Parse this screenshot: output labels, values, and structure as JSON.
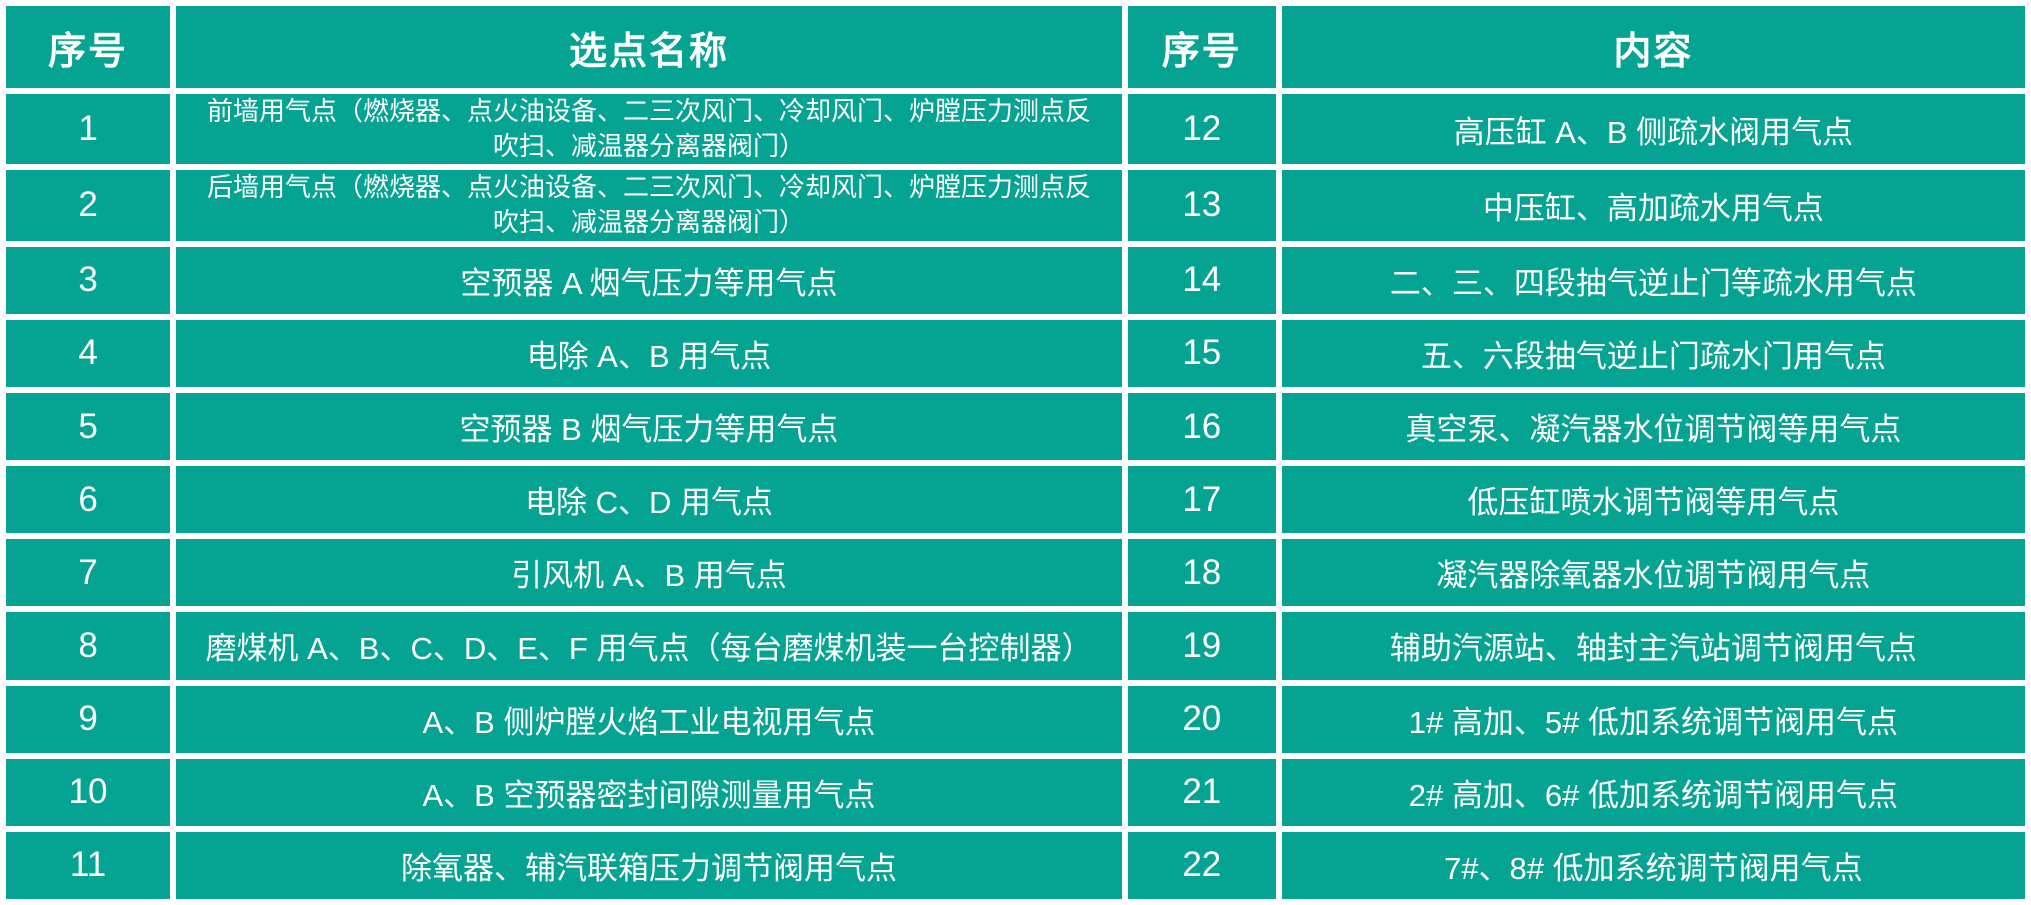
{
  "colors": {
    "background_teal": "#05a492",
    "grid_border": "#ffffff",
    "text": "#ffffff"
  },
  "left_table": {
    "headers": {
      "num": "序号",
      "name": "选点名称"
    },
    "rows": [
      {
        "num": "1",
        "text": "前墙用气点（燃烧器、点火油设备、二三次风门、冷却风门、炉膛压力测点反吹扫、减温器分离器阀门）",
        "small": true
      },
      {
        "num": "2",
        "text": "后墙用气点（燃烧器、点火油设备、二三次风门、冷却风门、炉膛压力测点反吹扫、减温器分离器阀门）",
        "small": true
      },
      {
        "num": "3",
        "text": "空预器 A 烟气压力等用气点",
        "small": false
      },
      {
        "num": "4",
        "text": "电除 A、B 用气点",
        "small": false
      },
      {
        "num": "5",
        "text": "空预器 B 烟气压力等用气点",
        "small": false
      },
      {
        "num": "6",
        "text": "电除 C、D 用气点",
        "small": false
      },
      {
        "num": "7",
        "text": "引风机 A、B 用气点",
        "small": false
      },
      {
        "num": "8",
        "text": "磨煤机 A、B、C、D、E、F 用气点（每台磨煤机装一台控制器）",
        "small": false
      },
      {
        "num": "9",
        "text": "A、B 侧炉膛火焰工业电视用气点",
        "small": false
      },
      {
        "num": "10",
        "text": "A、B 空预器密封间隙测量用气点",
        "small": false
      },
      {
        "num": "11",
        "text": "除氧器、辅汽联箱压力调节阀用气点",
        "small": false
      }
    ]
  },
  "right_table": {
    "headers": {
      "num": "序号",
      "content": "内容"
    },
    "rows": [
      {
        "num": "12",
        "text": "高压缸 A、B 侧疏水阀用气点"
      },
      {
        "num": "13",
        "text": "中压缸、高加疏水用气点"
      },
      {
        "num": "14",
        "text": "二、三、四段抽气逆止门等疏水用气点"
      },
      {
        "num": "15",
        "text": "五、六段抽气逆止门疏水门用气点"
      },
      {
        "num": "16",
        "text": "真空泵、凝汽器水位调节阀等用气点"
      },
      {
        "num": "17",
        "text": "低压缸喷水调节阀等用气点"
      },
      {
        "num": "18",
        "text": "凝汽器除氧器水位调节阀用气点"
      },
      {
        "num": "19",
        "text": "辅助汽源站、轴封主汽站调节阀用气点"
      },
      {
        "num": "20",
        "text": "1# 高加、5# 低加系统调节阀用气点"
      },
      {
        "num": "21",
        "text": "2# 高加、6# 低加系统调节阀用气点"
      },
      {
        "num": "22",
        "text": "7#、8# 低加系统调节阀用气点"
      }
    ]
  }
}
